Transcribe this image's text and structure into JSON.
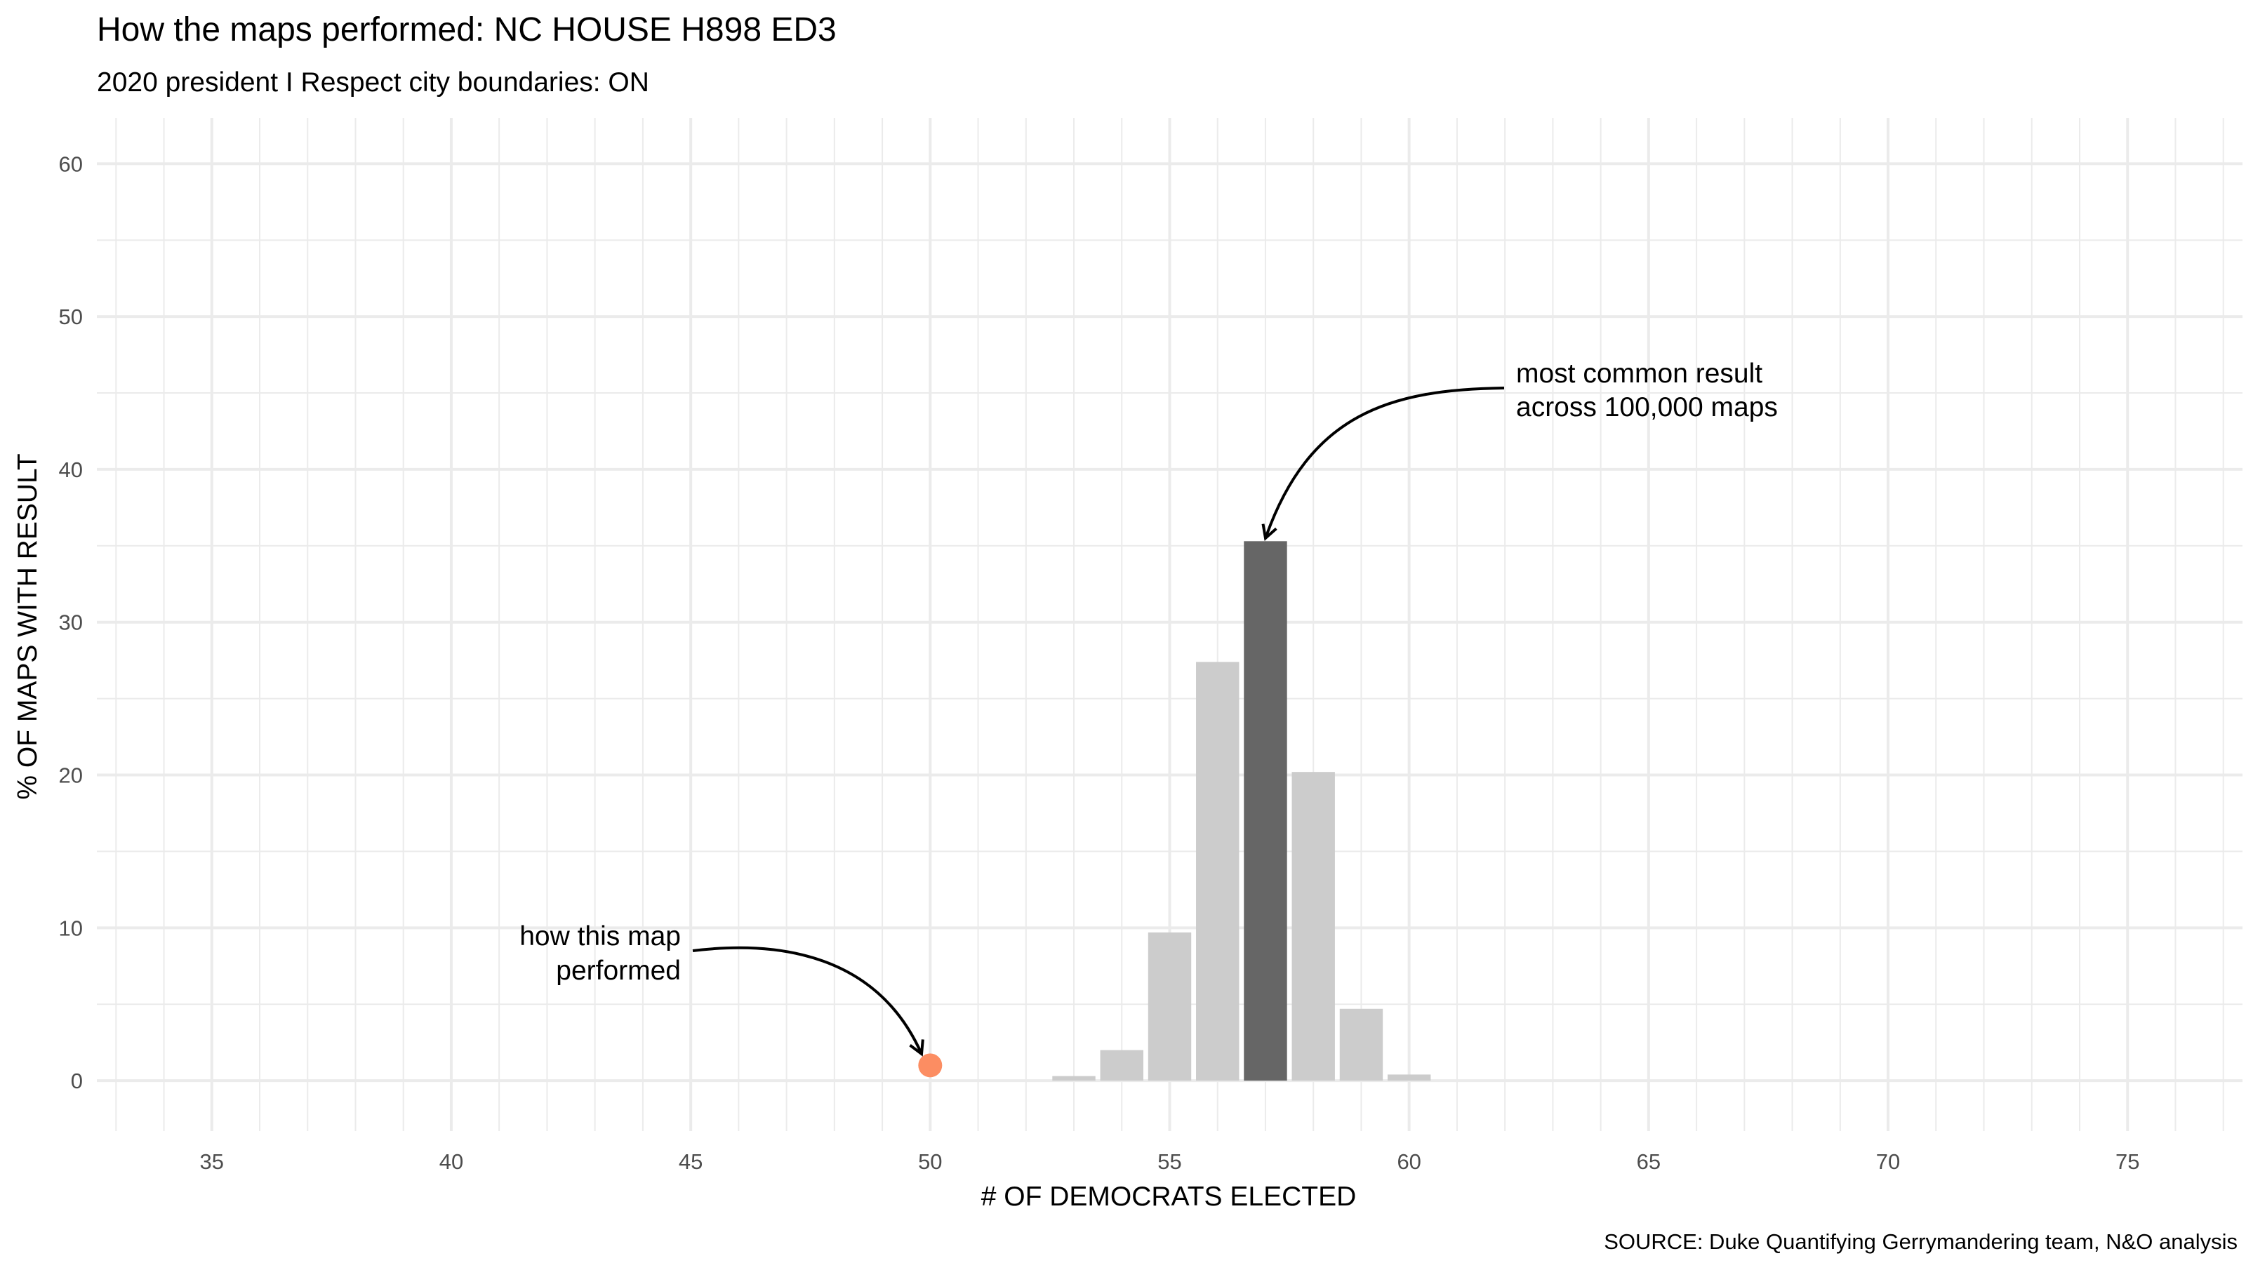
{
  "chart_data": {
    "type": "bar",
    "title": "How the maps performed: NC HOUSE H898 ED3",
    "subtitle": "2020 president I Respect city boundaries: ON",
    "xlabel": "# OF DEMOCRATS ELECTED",
    "ylabel": "% OF MAPS WITH RESULT",
    "caption": "SOURCE: Duke Quantifying Gerrymandering team, N&O analysis",
    "xlim": [
      32.6,
      77.4
    ],
    "ylim": [
      -3.3,
      63
    ],
    "x_ticks": [
      35,
      40,
      45,
      50,
      55,
      60,
      65,
      70,
      75
    ],
    "y_ticks": [
      0,
      10,
      20,
      30,
      40,
      50,
      60
    ],
    "grid": true,
    "bars": [
      {
        "x": 53,
        "value": 0.3
      },
      {
        "x": 54,
        "value": 2.0
      },
      {
        "x": 55,
        "value": 9.7
      },
      {
        "x": 56,
        "value": 27.4
      },
      {
        "x": 57,
        "value": 35.3
      },
      {
        "x": 58,
        "value": 20.2
      },
      {
        "x": 59,
        "value": 4.7
      },
      {
        "x": 60,
        "value": 0.4
      }
    ],
    "highlight_x": 57,
    "highlight_point": {
      "x": 50,
      "y": 1.0
    },
    "colors": {
      "bar": "#cccccc",
      "bar_highlight": "#666666",
      "point": "#fc8d62",
      "grid": "#ebebeb"
    },
    "annotations": {
      "mode": {
        "lines": [
          "most common result",
          "across 100,000 maps"
        ]
      },
      "point": {
        "lines": [
          "how this map",
          "performed"
        ]
      }
    }
  }
}
